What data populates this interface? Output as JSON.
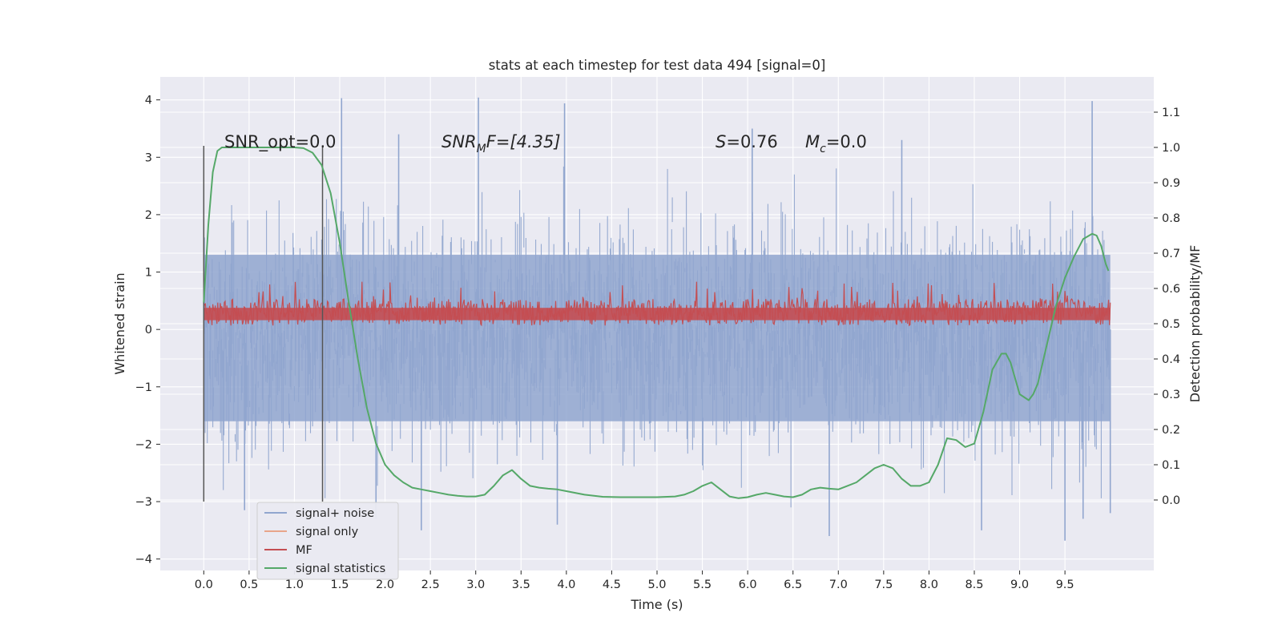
{
  "chart_data": {
    "type": "line",
    "title": "stats at each timestep for test data 494 [signal=0]",
    "xlabel": "Time (s)",
    "ylabel_left": "Whitened strain",
    "ylabel_right": "Detection probability/MF",
    "xlim": [
      -0.48,
      10.48
    ],
    "ylim_left": [
      -4.2,
      4.4
    ],
    "ylim_right": [
      -0.2,
      1.2
    ],
    "x_ticks": [
      "0.0",
      "0.5",
      "1.0",
      "1.5",
      "2.0",
      "2.5",
      "3.0",
      "3.5",
      "4.0",
      "4.5",
      "5.0",
      "5.5",
      "6.0",
      "6.5",
      "7.0",
      "7.5",
      "8.0",
      "8.5",
      "9.0",
      "9.5"
    ],
    "y_ticks_left": [
      "4",
      "3",
      "2",
      "1",
      "0",
      "−1",
      "−2",
      "−3",
      "−4"
    ],
    "y_ticks_right": [
      "1.1",
      "1.0",
      "0.9",
      "0.8",
      "0.7",
      "0.6",
      "0.5",
      "0.4",
      "0.3",
      "0.2",
      "0.1",
      "0.0"
    ],
    "grid": true,
    "legend_position": "lower-left",
    "vertical_markers_x": [
      0.0,
      1.31
    ],
    "vertical_markers_range": [
      -3.0,
      3.2
    ],
    "annotations": {
      "snr_opt": "SNR_opt=0.0",
      "snr_mf_main": "SNR",
      "snr_mf_sub": "M",
      "snr_mf_rest": "F=[4.35]",
      "s_stat_italic": "S",
      "s_stat_rest": "=0.76",
      "mc_italic": "M",
      "mc_sub": "c",
      "mc_rest": "=0.0"
    },
    "series": [
      {
        "name": "signal+ noise",
        "axis": "left",
        "color": "#91a6cf",
        "x_range": [
          0.0,
          10.0
        ],
        "description_values": "noisy whitened strain, mostly within [-2.5, 3], peaks near 4 at t=1.5, 3.0, 4.0, 6.0, 9.8 and -3.7 at t=9.5",
        "peaks": [
          {
            "x": 1.52,
            "y": 4.03
          },
          {
            "x": 3.03,
            "y": 4.04
          },
          {
            "x": 3.98,
            "y": 3.94
          },
          {
            "x": 6.05,
            "y": 3.5
          },
          {
            "x": 9.8,
            "y": 3.98
          },
          {
            "x": 2.15,
            "y": 3.4
          },
          {
            "x": 7.7,
            "y": 3.3
          },
          {
            "x": 8.58,
            "y": -3.5
          },
          {
            "x": 9.5,
            "y": -3.68
          },
          {
            "x": 3.9,
            "y": -3.4
          },
          {
            "x": 2.4,
            "y": -3.5
          },
          {
            "x": 6.9,
            "y": -3.6
          },
          {
            "x": 9.7,
            "y": -3.3
          },
          {
            "x": 1.9,
            "y": -3.3
          },
          {
            "x": 0.45,
            "y": -3.15
          },
          {
            "x": 10.0,
            "y": -3.2
          }
        ]
      },
      {
        "name": "signal only",
        "axis": "left",
        "color": "#e8a58a",
        "values_note": "flat, not visible"
      },
      {
        "name": "MF",
        "axis": "right",
        "color": "#c44e52",
        "x_range": [
          0.0,
          10.0
        ],
        "level_mean": 0.525,
        "level_band": [
          0.5,
          0.57
        ],
        "level_peak": 0.62
      },
      {
        "name": "signal statistics",
        "axis": "right",
        "color": "#55a868",
        "x": [
          0.0,
          0.05,
          0.1,
          0.15,
          0.2,
          0.3,
          0.5,
          0.7,
          0.9,
          1.0,
          1.1,
          1.2,
          1.3,
          1.4,
          1.5,
          1.6,
          1.7,
          1.8,
          1.9,
          2.0,
          2.1,
          2.2,
          2.3,
          2.4,
          2.5,
          2.6,
          2.7,
          2.8,
          2.9,
          3.0,
          3.1,
          3.2,
          3.3,
          3.4,
          3.5,
          3.6,
          3.7,
          3.8,
          3.9,
          4.0,
          4.2,
          4.4,
          4.6,
          4.8,
          5.0,
          5.2,
          5.3,
          5.4,
          5.5,
          5.6,
          5.7,
          5.8,
          5.9,
          6.0,
          6.1,
          6.2,
          6.3,
          6.4,
          6.5,
          6.6,
          6.7,
          6.8,
          6.9,
          7.0,
          7.1,
          7.2,
          7.3,
          7.4,
          7.5,
          7.6,
          7.7,
          7.8,
          7.9,
          8.0,
          8.1,
          8.2,
          8.3,
          8.4,
          8.5,
          8.6,
          8.7,
          8.8,
          8.85,
          8.9,
          9.0,
          9.1,
          9.15,
          9.2,
          9.3,
          9.4,
          9.5,
          9.6,
          9.7,
          9.8,
          9.85,
          9.9,
          9.95,
          9.98
        ],
        "y": [
          0.56,
          0.78,
          0.93,
          0.99,
          1.0,
          1.0,
          1.0,
          1.0,
          1.0,
          1.0,
          0.998,
          0.985,
          0.95,
          0.87,
          0.73,
          0.56,
          0.4,
          0.26,
          0.16,
          0.1,
          0.07,
          0.05,
          0.035,
          0.03,
          0.025,
          0.02,
          0.015,
          0.012,
          0.01,
          0.01,
          0.015,
          0.04,
          0.07,
          0.085,
          0.06,
          0.04,
          0.035,
          0.032,
          0.03,
          0.025,
          0.015,
          0.009,
          0.008,
          0.008,
          0.008,
          0.01,
          0.015,
          0.025,
          0.04,
          0.05,
          0.03,
          0.01,
          0.005,
          0.008,
          0.015,
          0.02,
          0.015,
          0.01,
          0.008,
          0.015,
          0.03,
          0.035,
          0.032,
          0.03,
          0.04,
          0.05,
          0.07,
          0.09,
          0.1,
          0.09,
          0.06,
          0.04,
          0.04,
          0.05,
          0.1,
          0.175,
          0.17,
          0.15,
          0.16,
          0.25,
          0.37,
          0.415,
          0.415,
          0.39,
          0.3,
          0.283,
          0.3,
          0.33,
          0.44,
          0.55,
          0.63,
          0.69,
          0.74,
          0.755,
          0.75,
          0.72,
          0.67,
          0.65
        ]
      }
    ]
  }
}
